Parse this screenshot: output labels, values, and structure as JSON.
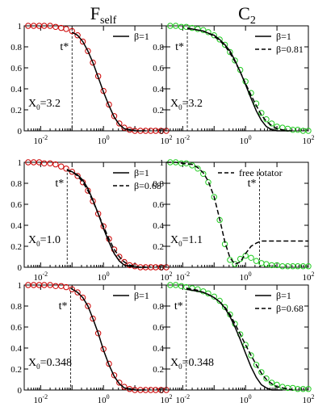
{
  "columns": [
    {
      "title_main": "F",
      "title_sub": "self"
    },
    {
      "title_main": "C",
      "title_sub": "2"
    }
  ],
  "chart_data": [
    {
      "id": "F-top",
      "type": "line",
      "row": 0,
      "col": 0,
      "xscale": "log",
      "xlim": [
        0.003,
        100
      ],
      "ylim": [
        0,
        1
      ],
      "yticks": [
        "0",
        "0.2",
        "0.4",
        "0.6",
        "0.8",
        "1"
      ],
      "xticks": [
        {
          "base": "10",
          "exp": "-2",
          "value": 0.01
        },
        {
          "base": "10",
          "exp": "0",
          "value": 1
        },
        {
          "base": "10",
          "exp": "2",
          "value": 100
        }
      ],
      "annotation": {
        "X_main": "X",
        "X_sub": "0",
        "value": "=3.2"
      },
      "tstar": {
        "label": "t*",
        "x": 0.1
      },
      "legend": [
        {
          "label": "β=1",
          "style": "solid"
        }
      ],
      "series": [
        {
          "kind": "markers",
          "color": "#cc0000",
          "x": [
            0.004,
            0.006,
            0.009,
            0.013,
            0.02,
            0.03,
            0.045,
            0.065,
            0.1,
            0.15,
            0.22,
            0.32,
            0.46,
            0.68,
            1.0,
            1.5,
            2.2,
            3.2,
            4.6,
            6.8,
            10,
            15,
            22,
            32,
            46,
            68,
            100
          ],
          "y": [
            1.0,
            1.0,
            1.0,
            1.0,
            1.0,
            0.99,
            0.98,
            0.97,
            0.95,
            0.91,
            0.85,
            0.76,
            0.65,
            0.52,
            0.38,
            0.25,
            0.14,
            0.07,
            0.03,
            0.01,
            0.0,
            0.0,
            0.0,
            0.0,
            0.0,
            0.0,
            0.0
          ]
        },
        {
          "kind": "line",
          "style": "solid",
          "color": "#000000",
          "x": [
            0.1,
            0.15,
            0.22,
            0.32,
            0.46,
            0.68,
            1.0,
            1.5,
            2.2,
            3.2,
            4.6,
            6.8,
            10,
            15,
            22
          ],
          "y": [
            0.94,
            0.91,
            0.85,
            0.76,
            0.65,
            0.51,
            0.37,
            0.24,
            0.13,
            0.06,
            0.02,
            0.01,
            0.0,
            0.0,
            0.0
          ]
        }
      ]
    },
    {
      "id": "C-top",
      "type": "line",
      "row": 0,
      "col": 1,
      "xscale": "log",
      "xlim": [
        0.003,
        100
      ],
      "ylim": [
        0,
        1
      ],
      "yticks": [
        "0",
        "0.2",
        "0.4",
        "0.6",
        "0.8",
        "1"
      ],
      "xticks": [
        {
          "base": "10",
          "exp": "-2",
          "value": 0.01
        },
        {
          "base": "10",
          "exp": "0",
          "value": 1
        },
        {
          "base": "10",
          "exp": "2",
          "value": 100
        }
      ],
      "annotation": {
        "X_main": "X",
        "X_sub": "0",
        "value": "=3.2"
      },
      "tstar": {
        "label": "t*",
        "x": 0.014
      },
      "legend": [
        {
          "label": "β=1",
          "style": "solid"
        },
        {
          "label": "β=0.81",
          "style": "dashed"
        }
      ],
      "series": [
        {
          "kind": "markers",
          "color": "#22cc22",
          "x": [
            0.004,
            0.006,
            0.009,
            0.013,
            0.02,
            0.03,
            0.045,
            0.065,
            0.1,
            0.15,
            0.22,
            0.32,
            0.46,
            0.68,
            1.0,
            1.5,
            2.2,
            3.2,
            4.6,
            6.8,
            10,
            15,
            22,
            32,
            46,
            68,
            100
          ],
          "y": [
            1.0,
            1.0,
            0.99,
            0.99,
            0.98,
            0.97,
            0.96,
            0.94,
            0.91,
            0.87,
            0.82,
            0.75,
            0.67,
            0.58,
            0.47,
            0.36,
            0.26,
            0.17,
            0.11,
            0.07,
            0.04,
            0.03,
            0.02,
            0.01,
            0.01,
            0.0,
            0.0
          ]
        },
        {
          "kind": "line",
          "style": "solid",
          "color": "#000000",
          "x": [
            0.014,
            0.02,
            0.03,
            0.045,
            0.065,
            0.1,
            0.15,
            0.22,
            0.32,
            0.46,
            0.68,
            1.0,
            1.5,
            2.2,
            3.2,
            4.6,
            6.8,
            10,
            15,
            22
          ],
          "y": [
            0.97,
            0.97,
            0.96,
            0.95,
            0.93,
            0.91,
            0.87,
            0.82,
            0.76,
            0.67,
            0.56,
            0.44,
            0.31,
            0.19,
            0.1,
            0.04,
            0.01,
            0.0,
            0.0,
            0.0
          ]
        },
        {
          "kind": "line",
          "style": "dashed",
          "color": "#000000",
          "x": [
            0.014,
            0.02,
            0.03,
            0.045,
            0.065,
            0.1,
            0.15,
            0.22,
            0.32,
            0.46,
            0.68,
            1.0,
            1.5,
            2.2,
            3.2,
            4.6,
            6.8,
            10,
            15,
            22,
            32
          ],
          "y": [
            0.98,
            0.97,
            0.96,
            0.95,
            0.93,
            0.9,
            0.86,
            0.81,
            0.74,
            0.66,
            0.56,
            0.45,
            0.34,
            0.24,
            0.15,
            0.09,
            0.05,
            0.02,
            0.01,
            0.0,
            0.0
          ]
        }
      ]
    },
    {
      "id": "F-mid",
      "type": "line",
      "row": 1,
      "col": 0,
      "xscale": "log",
      "xlim": [
        0.003,
        100
      ],
      "ylim": [
        0,
        1
      ],
      "yticks": [
        "0",
        "0.2",
        "0.4",
        "0.6",
        "0.8",
        "1"
      ],
      "xticks": [
        {
          "base": "10",
          "exp": "-2",
          "value": 0.01
        },
        {
          "base": "10",
          "exp": "0",
          "value": 1
        },
        {
          "base": "10",
          "exp": "2",
          "value": 100
        }
      ],
      "annotation": {
        "X_main": "X",
        "X_sub": "0",
        "value": "=1.0"
      },
      "tstar": {
        "label": "t*",
        "x": 0.07
      },
      "legend": [
        {
          "label": "β=1",
          "style": "solid"
        },
        {
          "label": "β=0.68",
          "style": "dashed"
        }
      ],
      "series": [
        {
          "kind": "markers",
          "color": "#cc0000",
          "x": [
            0.004,
            0.006,
            0.009,
            0.013,
            0.02,
            0.03,
            0.045,
            0.065,
            0.1,
            0.15,
            0.22,
            0.32,
            0.46,
            0.68,
            1.0,
            1.5,
            2.2,
            3.2,
            4.6,
            6.8,
            10,
            15,
            22,
            32,
            46,
            68,
            100
          ],
          "y": [
            1.0,
            1.0,
            1.0,
            0.99,
            0.99,
            0.98,
            0.96,
            0.94,
            0.91,
            0.87,
            0.81,
            0.73,
            0.63,
            0.51,
            0.39,
            0.27,
            0.17,
            0.1,
            0.05,
            0.02,
            0.01,
            0.0,
            0.0,
            0.0,
            0.0,
            0.0,
            0.0
          ]
        },
        {
          "kind": "line",
          "style": "solid",
          "color": "#000000",
          "x": [
            0.07,
            0.1,
            0.15,
            0.22,
            0.32,
            0.46,
            0.68,
            1.0,
            1.5,
            2.2,
            3.2,
            4.6,
            6.8,
            10,
            15,
            22
          ],
          "y": [
            0.92,
            0.91,
            0.88,
            0.83,
            0.75,
            0.64,
            0.51,
            0.37,
            0.24,
            0.13,
            0.06,
            0.02,
            0.01,
            0.0,
            0.0,
            0.0
          ]
        },
        {
          "kind": "line",
          "style": "dashed",
          "color": "#000000",
          "x": [
            0.07,
            0.1,
            0.15,
            0.22,
            0.32,
            0.46,
            0.68,
            1.0,
            1.5,
            2.2,
            3.2,
            4.6,
            6.8,
            10,
            15,
            22,
            32
          ],
          "y": [
            0.93,
            0.91,
            0.87,
            0.81,
            0.73,
            0.63,
            0.51,
            0.39,
            0.27,
            0.17,
            0.1,
            0.05,
            0.02,
            0.01,
            0.0,
            0.0,
            0.0
          ]
        }
      ]
    },
    {
      "id": "C-mid",
      "type": "line",
      "row": 1,
      "col": 1,
      "xscale": "log",
      "xlim": [
        0.003,
        100
      ],
      "ylim": [
        0,
        1
      ],
      "yticks": [
        "0",
        "0.2",
        "0.4",
        "0.6",
        "0.8",
        "1"
      ],
      "xticks": [
        {
          "base": "10",
          "exp": "-2",
          "value": 0.01
        },
        {
          "base": "10",
          "exp": "0",
          "value": 1
        },
        {
          "base": "10",
          "exp": "2",
          "value": 100
        }
      ],
      "annotation": {
        "X_main": "X",
        "X_sub": "0",
        "value": "=1.1"
      },
      "tstar": {
        "label": "t*",
        "x": 2.8
      },
      "legend": [
        {
          "label": "free rotator",
          "style": "dashed"
        }
      ],
      "series": [
        {
          "kind": "markers",
          "color": "#22cc22",
          "x": [
            0.004,
            0.006,
            0.009,
            0.013,
            0.02,
            0.03,
            0.045,
            0.065,
            0.1,
            0.15,
            0.22,
            0.32,
            0.46,
            0.68,
            1.0,
            1.5,
            2.2,
            3.2,
            4.6,
            6.8,
            10,
            15,
            22,
            32,
            46,
            68,
            100
          ],
          "y": [
            1.0,
            1.0,
            0.99,
            0.99,
            0.97,
            0.94,
            0.89,
            0.81,
            0.67,
            0.45,
            0.22,
            0.07,
            0.03,
            0.08,
            0.11,
            0.09,
            0.06,
            0.04,
            0.03,
            0.02,
            0.02,
            0.01,
            0.01,
            0.01,
            0.01,
            0.01,
            0.01
          ]
        },
        {
          "kind": "line",
          "style": "dashed",
          "color": "#000000",
          "x": [
            0.003,
            0.006,
            0.01,
            0.02,
            0.03,
            0.045,
            0.065,
            0.1,
            0.15,
            0.22,
            0.32,
            0.46,
            0.68,
            1.0,
            1.5,
            2.2,
            3.2,
            4.6,
            6.8,
            10,
            15,
            22,
            32,
            46,
            68,
            100
          ],
          "y": [
            1.0,
            1.0,
            0.99,
            0.98,
            0.95,
            0.9,
            0.82,
            0.67,
            0.46,
            0.24,
            0.09,
            0.03,
            0.05,
            0.13,
            0.2,
            0.23,
            0.25,
            0.25,
            0.25,
            0.25,
            0.25,
            0.25,
            0.25,
            0.25,
            0.25,
            0.25
          ]
        }
      ]
    },
    {
      "id": "F-bot",
      "type": "line",
      "row": 2,
      "col": 0,
      "xscale": "log",
      "xlim": [
        0.003,
        100
      ],
      "ylim": [
        0,
        1
      ],
      "yticks": [
        "0",
        "0.2",
        "0.4",
        "0.6",
        "0.8",
        "1"
      ],
      "xticks": [
        {
          "base": "10",
          "exp": "-2",
          "value": 0.01
        },
        {
          "base": "10",
          "exp": "0",
          "value": 1
        },
        {
          "base": "10",
          "exp": "2",
          "value": 100
        }
      ],
      "annotation": {
        "X_main": "X",
        "X_sub": "0",
        "value": "=0.348"
      },
      "tstar": {
        "label": "t*",
        "x": 0.09
      },
      "legend": [
        {
          "label": "β=1",
          "style": "solid"
        }
      ],
      "series": [
        {
          "kind": "markers",
          "color": "#cc0000",
          "x": [
            0.004,
            0.006,
            0.009,
            0.013,
            0.02,
            0.03,
            0.045,
            0.065,
            0.1,
            0.15,
            0.22,
            0.32,
            0.46,
            0.68,
            1.0,
            1.5,
            2.2,
            3.2,
            4.6,
            6.8,
            10,
            15,
            22,
            32,
            46,
            68,
            100
          ],
          "y": [
            1.0,
            1.0,
            1.0,
            1.0,
            1.0,
            0.99,
            0.99,
            0.98,
            0.96,
            0.93,
            0.88,
            0.8,
            0.68,
            0.54,
            0.39,
            0.25,
            0.14,
            0.07,
            0.03,
            0.01,
            0.0,
            0.0,
            0.0,
            0.0,
            0.0,
            0.0,
            0.0
          ]
        },
        {
          "kind": "line",
          "style": "solid",
          "color": "#000000",
          "x": [
            0.09,
            0.15,
            0.22,
            0.32,
            0.46,
            0.68,
            1.0,
            1.5,
            2.2,
            3.2,
            4.6,
            6.8,
            10,
            15,
            22
          ],
          "y": [
            0.97,
            0.93,
            0.88,
            0.8,
            0.68,
            0.54,
            0.38,
            0.24,
            0.13,
            0.06,
            0.02,
            0.01,
            0.0,
            0.0,
            0.0
          ]
        }
      ]
    },
    {
      "id": "C-bot",
      "type": "line",
      "row": 2,
      "col": 1,
      "xscale": "log",
      "xlim": [
        0.003,
        100
      ],
      "ylim": [
        0,
        1
      ],
      "yticks": [
        "0",
        "0.2",
        "0.4",
        "0.6",
        "0.8",
        "1"
      ],
      "xticks": [
        {
          "base": "10",
          "exp": "-2",
          "value": 0.01
        },
        {
          "base": "10",
          "exp": "0",
          "value": 1
        },
        {
          "base": "10",
          "exp": "2",
          "value": 100
        }
      ],
      "annotation": {
        "X_main": "X",
        "X_sub": "0",
        "value": "=0.348"
      },
      "tstar": {
        "label": "t*",
        "x": 0.013
      },
      "legend": [
        {
          "label": "β=1",
          "style": "solid"
        },
        {
          "label": "β=0.68",
          "style": "dashed"
        }
      ],
      "series": [
        {
          "kind": "markers",
          "color": "#22cc22",
          "x": [
            0.004,
            0.006,
            0.009,
            0.013,
            0.02,
            0.03,
            0.045,
            0.065,
            0.1,
            0.15,
            0.22,
            0.32,
            0.46,
            0.68,
            1.0,
            1.5,
            2.2,
            3.2,
            4.6,
            6.8,
            10,
            15,
            22,
            32,
            46,
            68,
            100
          ],
          "y": [
            1.0,
            1.0,
            0.99,
            0.98,
            0.97,
            0.96,
            0.94,
            0.92,
            0.89,
            0.85,
            0.79,
            0.72,
            0.63,
            0.53,
            0.43,
            0.33,
            0.24,
            0.17,
            0.11,
            0.07,
            0.05,
            0.03,
            0.02,
            0.02,
            0.01,
            0.01,
            0.01
          ]
        },
        {
          "kind": "line",
          "style": "solid",
          "color": "#000000",
          "x": [
            0.013,
            0.02,
            0.03,
            0.045,
            0.065,
            0.1,
            0.15,
            0.22,
            0.32,
            0.46,
            0.68,
            1.0,
            1.5,
            2.2,
            3.2,
            4.6,
            6.8,
            10,
            15
          ],
          "y": [
            0.96,
            0.95,
            0.94,
            0.93,
            0.91,
            0.88,
            0.84,
            0.78,
            0.7,
            0.6,
            0.48,
            0.35,
            0.22,
            0.12,
            0.05,
            0.02,
            0.0,
            0.0,
            0.0
          ]
        },
        {
          "kind": "line",
          "style": "dashed",
          "color": "#000000",
          "x": [
            0.013,
            0.02,
            0.03,
            0.045,
            0.065,
            0.1,
            0.15,
            0.22,
            0.32,
            0.46,
            0.68,
            1.0,
            1.5,
            2.2,
            3.2,
            4.6,
            6.8,
            10,
            15,
            22,
            32
          ],
          "y": [
            0.97,
            0.96,
            0.95,
            0.93,
            0.91,
            0.88,
            0.84,
            0.79,
            0.72,
            0.63,
            0.53,
            0.43,
            0.33,
            0.24,
            0.16,
            0.1,
            0.06,
            0.03,
            0.02,
            0.01,
            0.0
          ]
        }
      ]
    }
  ]
}
